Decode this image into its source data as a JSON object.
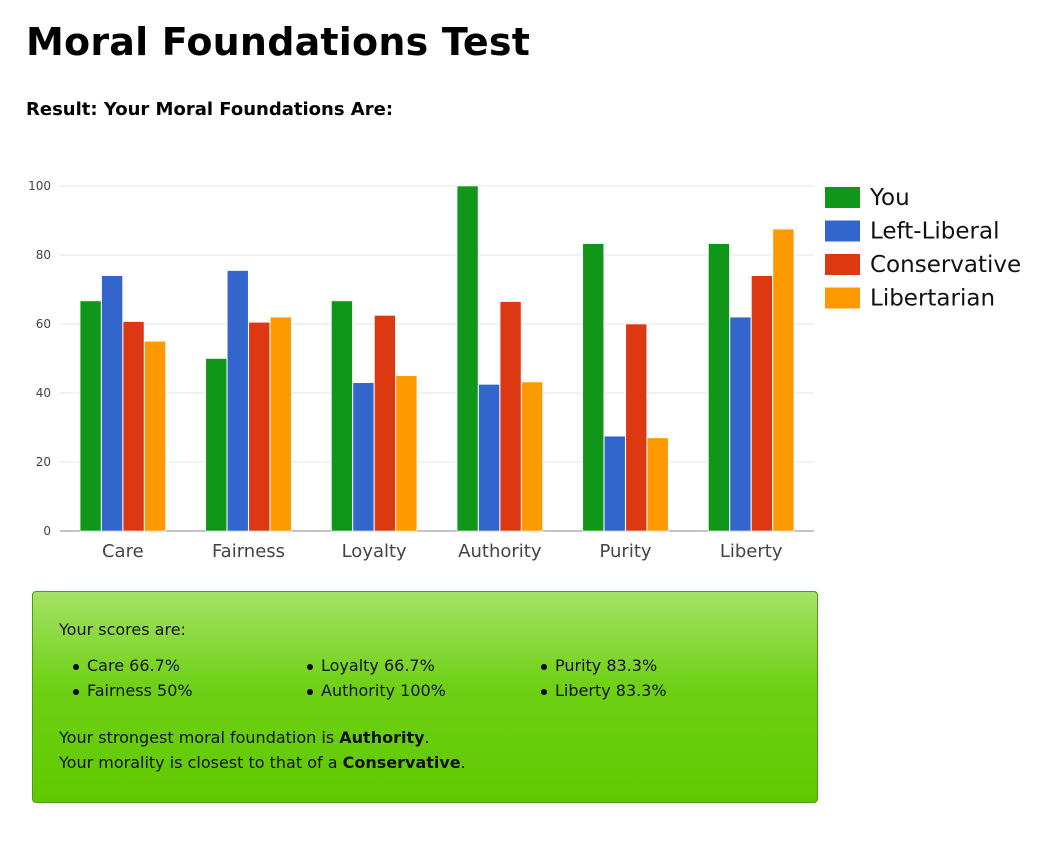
{
  "page": {
    "title": "Moral Foundations Test",
    "subtitle": "Result: Your Moral Foundations Are:"
  },
  "chart_data": {
    "type": "bar",
    "categories": [
      "Care",
      "Fairness",
      "Loyalty",
      "Authority",
      "Purity",
      "Liberty"
    ],
    "series": [
      {
        "name": "You",
        "color": "#109618",
        "values": [
          66.7,
          50,
          66.7,
          100,
          83.3,
          83.3
        ]
      },
      {
        "name": "Left-Liberal",
        "color": "#3366cc",
        "values": [
          74,
          75.5,
          43,
          42.5,
          27.5,
          62
        ]
      },
      {
        "name": "Conservative",
        "color": "#dc3912",
        "values": [
          60.7,
          60.5,
          62.5,
          66.5,
          60,
          74
        ]
      },
      {
        "name": "Libertarian",
        "color": "#ff9900",
        "values": [
          55,
          62,
          45,
          43.2,
          27,
          87.5
        ]
      }
    ],
    "yticks": [
      0,
      20,
      40,
      60,
      80,
      100
    ],
    "ylim": [
      0,
      100
    ],
    "grid": true,
    "legend": "right"
  },
  "results": {
    "scores_title": "Your scores are:",
    "scores": [
      "Care 66.7%",
      "Fairness 50%",
      "Loyalty 66.7%",
      "Authority 100%",
      "Purity 83.3%",
      "Liberty 83.3%"
    ],
    "strongest_prefix": "Your strongest moral foundation is ",
    "strongest_value": "Authority",
    "strongest_suffix": ".",
    "closest_prefix": "Your morality is closest to that of a ",
    "closest_value": "Conservative",
    "closest_suffix": "."
  }
}
